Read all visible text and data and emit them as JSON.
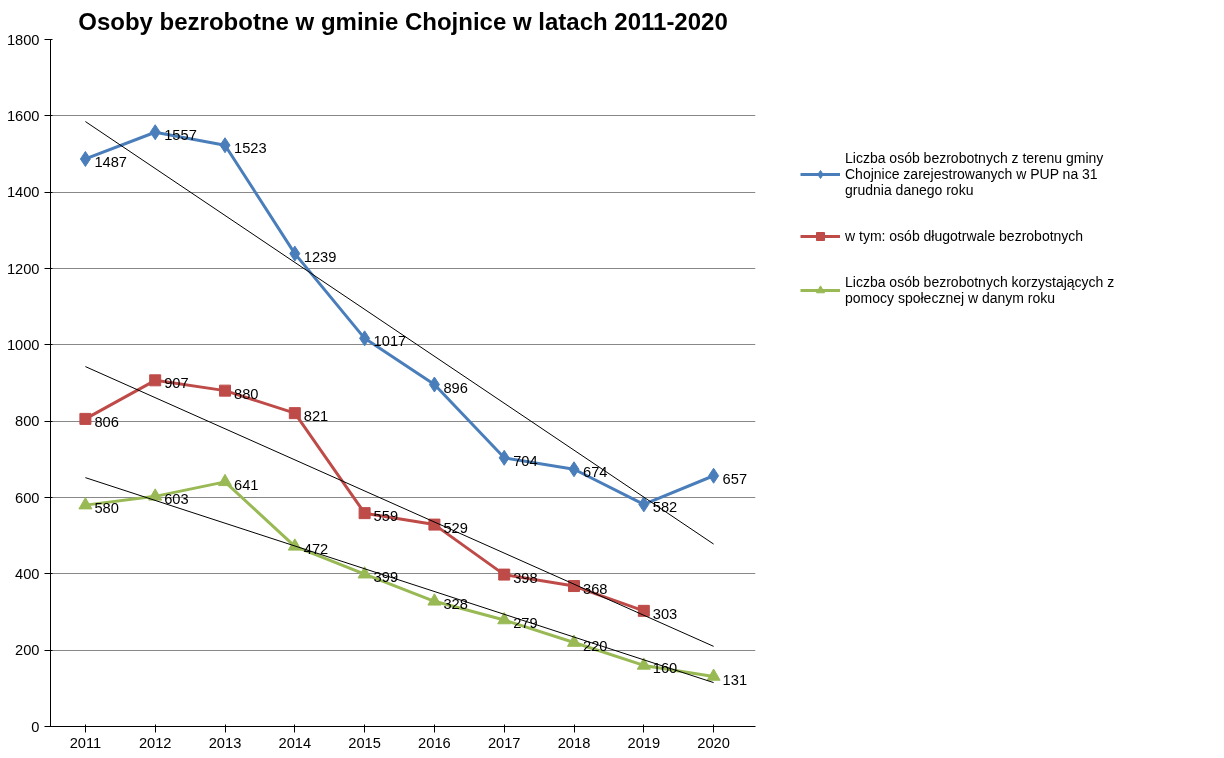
{
  "chart_data": {
    "type": "line",
    "title": "Osoby bezrobotne w gminie Chojnice w latach 2011-2020",
    "x": [
      2011,
      2012,
      2013,
      2014,
      2015,
      2016,
      2017,
      2018,
      2019,
      2020
    ],
    "xlim": [
      2010.5,
      2020.6
    ],
    "xticks": [
      2011,
      2012,
      2013,
      2014,
      2015,
      2016,
      2017,
      2018,
      2019,
      2020
    ],
    "series": [
      {
        "name": "Liczba osób bezrobotnych z terenu gminy Chojnice zarejestrowanych w PUP na 31 grudnia danego roku",
        "color": "#4a7ebb",
        "marker": "diamond",
        "values": [
          1487,
          1557,
          1523,
          1239,
          1017,
          896,
          704,
          674,
          582,
          657
        ]
      },
      {
        "name": "w tym: osób długotrwale bezrobotnych",
        "color": "#be4b48",
        "marker": "square",
        "values": [
          806,
          907,
          880,
          821,
          559,
          529,
          398,
          368,
          303,
          null
        ]
      },
      {
        "name": "Liczba osób bezrobotnych korzystających z pomocy społecznej w danym roku",
        "color": "#98b954",
        "marker": "triangle",
        "values": [
          580,
          603,
          641,
          472,
          399,
          328,
          279,
          220,
          160,
          131
        ]
      },
      {
        "type": "line",
        "color": "#000000",
        "marker": "none",
        "values": [
          1585,
          null,
          null,
          null,
          null,
          null,
          null,
          null,
          null,
          478
        ],
        "value_labels": [
          null,
          null,
          null,
          null,
          null,
          null,
          null,
          null,
          null,
          null
        ]
      },
      {
        "type": "line",
        "color": "#000000",
        "marker": "none",
        "values": [
          943,
          null,
          null,
          null,
          null,
          null,
          null,
          null,
          null,
          210
        ],
        "value_labels": [
          null,
          null,
          null,
          null,
          null,
          null,
          null,
          null,
          null,
          null
        ]
      },
      {
        "type": "line",
        "color": "#000000",
        "marker": "none",
        "values": [
          652,
          null,
          null,
          null,
          null,
          null,
          null,
          null,
          null,
          115
        ],
        "value_labels": [
          null,
          null,
          null,
          null,
          null,
          null,
          null,
          null,
          null,
          null
        ]
      }
    ],
    "ylim": [
      0,
      1800
    ],
    "yticks": [
      0,
      200,
      400,
      600,
      800,
      1000,
      1200,
      1400,
      1600,
      1800
    ],
    "grid": "y",
    "legend": "right",
    "data_labels": true
  }
}
